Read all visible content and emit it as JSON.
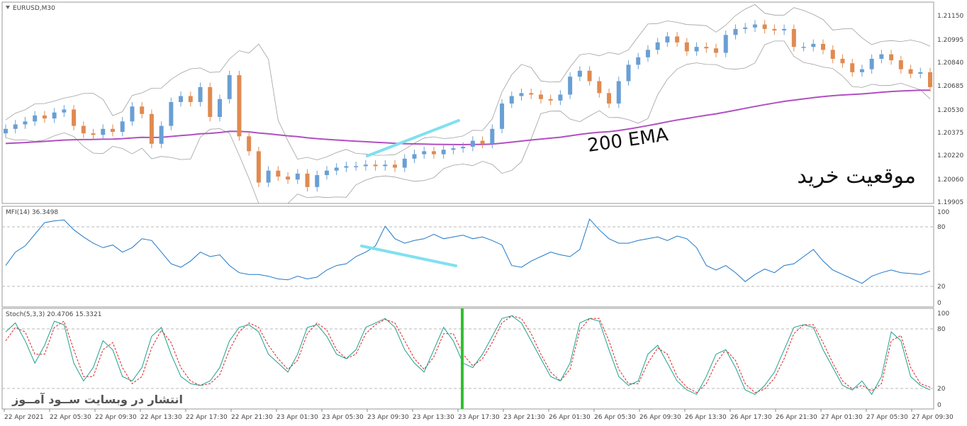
{
  "price_pane": {
    "label": "EURUSD,M30",
    "y_ticks": [
      "1.21150",
      "1.20995",
      "1.20840",
      "1.20685",
      "1.20530",
      "1.20375",
      "1.20220",
      "1.20060",
      "1.19905"
    ],
    "ema_label": "200 EMA",
    "signal_text": "موقعیت خرید",
    "colors": {
      "bull": "#6a9fd4",
      "bear": "#e08a50",
      "ema": "#b050c0",
      "band": "#a0a0a0",
      "trend": "#80e0f0"
    }
  },
  "mfi_pane": {
    "label": "MFI(14) 36.3498",
    "y_ticks": [
      "100",
      "80",
      "20",
      "0"
    ],
    "colors": {
      "line": "#1f78c8"
    }
  },
  "stoch_pane": {
    "label": "Stoch(5,3,3) 20.4706 15.3321",
    "y_ticks": [
      "100",
      "80",
      "20",
      "0"
    ],
    "watermark": "انتشار در وبسایت ســود آمــوز",
    "colors": {
      "main": "#20a090",
      "signal": "#e02020",
      "marker": "#30c030"
    }
  },
  "time_axis": [
    "22 Apr 2021",
    "22 Apr 05:30",
    "22 Apr 09:30",
    "22 Apr 13:30",
    "22 Apr 17:30",
    "22 Apr 21:30",
    "23 Apr 01:30",
    "23 Apr 05:30",
    "23 Apr 09:30",
    "23 Apr 13:30",
    "23 Apr 17:30",
    "23 Apr 21:30",
    "26 Apr 01:30",
    "26 Apr 05:30",
    "26 Apr 09:30",
    "26 Apr 13:30",
    "26 Apr 17:30",
    "26 Apr 21:30",
    "27 Apr 01:30",
    "27 Apr 05:30",
    "27 Apr 09:30"
  ],
  "chart_data": [
    {
      "type": "candlestick",
      "title": "EURUSD,M30",
      "ylim": [
        1.199,
        1.2125
      ],
      "bar_count": 96,
      "closes": [
        1.204,
        1.2043,
        1.2045,
        1.2049,
        1.2047,
        1.2051,
        1.2053,
        1.2042,
        1.2037,
        1.2036,
        1.204,
        1.2038,
        1.2045,
        1.2055,
        1.205,
        1.203,
        1.2042,
        1.2058,
        1.2062,
        1.2058,
        1.2068,
        1.2048,
        1.206,
        1.2076,
        1.2035,
        1.2025,
        1.2004,
        1.2012,
        1.2008,
        1.2006,
        1.201,
        1.2001,
        1.2009,
        1.2012,
        1.2014,
        1.2015,
        1.2015,
        1.2016,
        1.2015,
        1.2016,
        1.2014,
        1.202,
        1.2023,
        1.2025,
        1.2023,
        1.2026,
        1.2027,
        1.2028,
        1.2032,
        1.203,
        1.204,
        1.2057,
        1.2062,
        1.2064,
        1.2063,
        1.206,
        1.2059,
        1.2063,
        1.2075,
        1.2079,
        1.2072,
        1.2064,
        1.2057,
        1.2072,
        1.2083,
        1.2088,
        1.2093,
        1.2098,
        1.2102,
        1.2098,
        1.2092,
        1.2095,
        1.2094,
        1.2091,
        1.2103,
        1.2107,
        1.2108,
        1.211,
        1.2107,
        1.2106,
        1.2107,
        1.2095,
        1.2095,
        1.2097,
        1.2093,
        1.2087,
        1.2084,
        1.2078,
        1.208,
        1.2087,
        1.209,
        1.2086,
        1.208,
        1.2077,
        1.2078,
        1.2068
      ]
    },
    {
      "type": "line",
      "title": "MFI(14) 36.3498",
      "ylim": [
        0,
        100
      ],
      "series": [
        {
          "name": "",
          "values": [
            40,
            55,
            62,
            75,
            88,
            90,
            91,
            80,
            72,
            65,
            60,
            63,
            55,
            60,
            70,
            68,
            55,
            42,
            38,
            45,
            55,
            50,
            52,
            40,
            32,
            30,
            30,
            28,
            25,
            24,
            28,
            25,
            27,
            35,
            40,
            42,
            50,
            55,
            62,
            84,
            70,
            65,
            68,
            70,
            75,
            70,
            72,
            74,
            70,
            72,
            68,
            63,
            40,
            38,
            45,
            50,
            55,
            52,
            50,
            58,
            92,
            80,
            70,
            65,
            65,
            68,
            70,
            72,
            68,
            73,
            70,
            60,
            40,
            35,
            40,
            32,
            22,
            30,
            36,
            32,
            40,
            42,
            50,
            58,
            45,
            35,
            30,
            25,
            20,
            28,
            32,
            35,
            32,
            31,
            30,
            34
          ]
        }
      ]
    },
    {
      "type": "line",
      "title": "Stoch(5,3,3) 20.4706 15.3321",
      "ylim": [
        0,
        100
      ],
      "series": [
        {
          "name": "",
          "values": [
            80,
            90,
            70,
            45,
            65,
            92,
            88,
            45,
            25,
            40,
            70,
            60,
            30,
            25,
            40,
            75,
            85,
            55,
            30,
            22,
            20,
            25,
            40,
            70,
            85,
            88,
            80,
            55,
            45,
            35,
            55,
            85,
            88,
            75,
            55,
            50,
            60,
            85,
            90,
            95,
            85,
            60,
            45,
            35,
            60,
            85,
            70,
            45,
            40,
            55,
            75,
            95,
            98,
            90,
            70,
            50,
            30,
            25,
            45,
            90,
            95,
            92,
            60,
            30,
            20,
            25,
            55,
            65,
            45,
            25,
            15,
            10,
            30,
            55,
            60,
            40,
            15,
            10,
            20,
            35,
            60,
            85,
            88,
            85,
            60,
            40,
            20,
            15,
            25,
            10,
            30,
            80,
            70,
            30,
            20,
            15
          ]
        },
        {
          "name": "",
          "values": [
            70,
            85,
            80,
            55,
            55,
            85,
            92,
            60,
            30,
            30,
            60,
            68,
            40,
            22,
            30,
            62,
            82,
            68,
            40,
            25,
            20,
            22,
            32,
            60,
            80,
            90,
            85,
            65,
            50,
            38,
            48,
            78,
            90,
            82,
            60,
            50,
            55,
            78,
            88,
            94,
            90,
            70,
            50,
            38,
            52,
            78,
            78,
            55,
            42,
            50,
            68,
            90,
            98,
            95,
            78,
            55,
            35,
            25,
            38,
            82,
            95,
            95,
            70,
            38,
            22,
            22,
            45,
            62,
            55,
            30,
            18,
            12,
            22,
            45,
            60,
            48,
            22,
            12,
            16,
            28,
            50,
            78,
            88,
            88,
            68,
            45,
            25,
            16,
            20,
            14,
            22,
            70,
            76,
            40,
            22,
            18
          ]
        }
      ]
    }
  ]
}
